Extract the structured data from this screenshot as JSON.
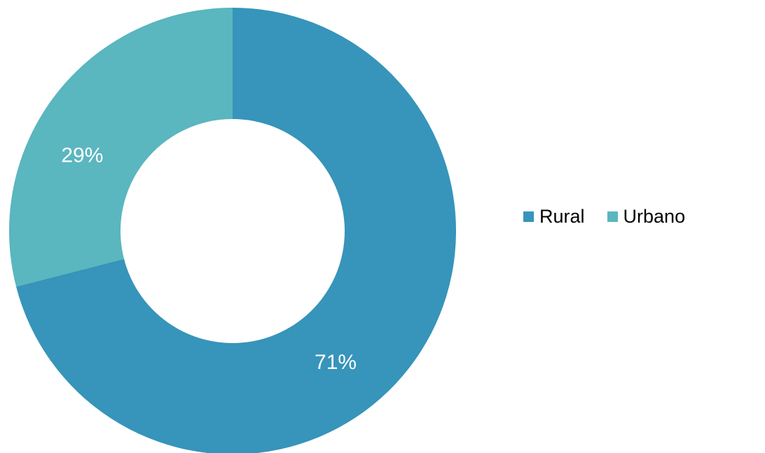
{
  "chart_data": {
    "type": "pie",
    "variant": "donut",
    "categories": [
      "Rural",
      "Urbano"
    ],
    "values": [
      71,
      29
    ],
    "data_labels": [
      "71%",
      "29%"
    ],
    "colors": [
      "#3794BA",
      "#5AB6BF"
    ],
    "legend_position": "right",
    "title": ""
  }
}
